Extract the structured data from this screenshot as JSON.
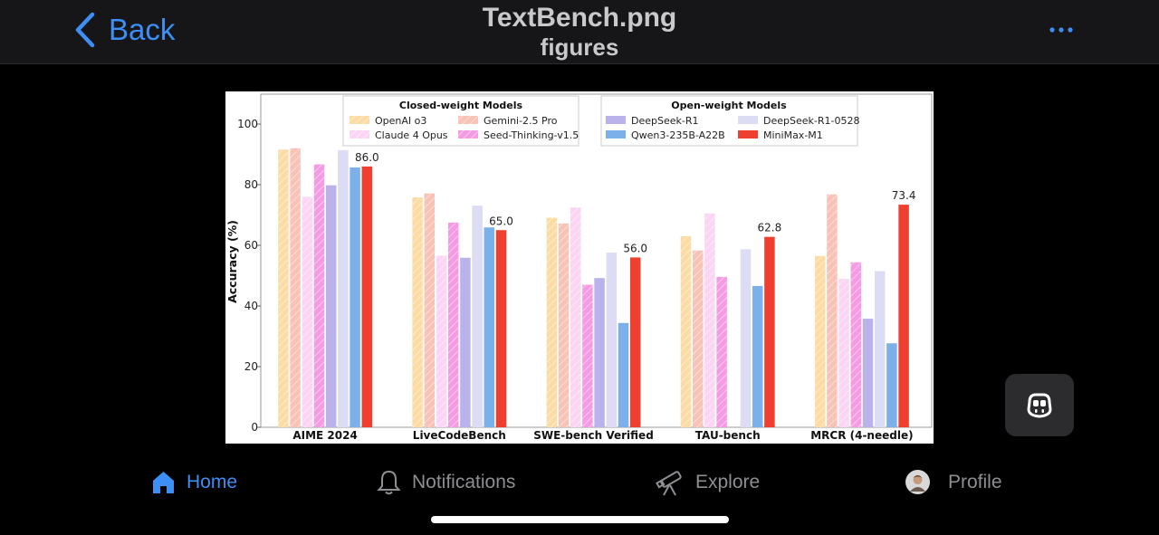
{
  "header": {
    "back_label": "Back",
    "title": "TextBench.png",
    "subtitle": "figures",
    "more_icon": "ellipsis-icon"
  },
  "tabs": [
    {
      "label": "Home",
      "icon": "home-icon",
      "active": true
    },
    {
      "label": "Notifications",
      "icon": "bell-icon",
      "active": false
    },
    {
      "label": "Explore",
      "icon": "telescope-icon",
      "active": false
    },
    {
      "label": "Profile",
      "icon": "avatar",
      "active": false
    }
  ],
  "colors": {
    "accent": "#3d8ff5",
    "inactive": "#8e8e93"
  },
  "chart_data": {
    "type": "bar",
    "ylabel": "Accuracy (%)",
    "ylim": [
      0,
      100
    ],
    "yticks": [
      0,
      20,
      40,
      60,
      80,
      100
    ],
    "categories": [
      "AIME 2024",
      "LiveCodeBench",
      "SWE-bench Verified",
      "TAU-bench",
      "MRCR (4-needle)"
    ],
    "legend_groups": [
      {
        "title": "Closed-weight Models",
        "placement": "top-center-left"
      },
      {
        "title": "Open-weight Models",
        "placement": "top-center-right"
      }
    ],
    "series": [
      {
        "name": "OpenAI o3",
        "group": "closed",
        "color": "#fcdca4",
        "hatch": true,
        "values": [
          91.6,
          75.8,
          69.1,
          63.0,
          56.5
        ]
      },
      {
        "name": "Gemini-2.5 Pro",
        "group": "closed",
        "color": "#f9c2b6",
        "hatch": true,
        "values": [
          92.0,
          77.1,
          67.2,
          58.3,
          76.8
        ]
      },
      {
        "name": "Claude 4 Opus",
        "group": "closed",
        "color": "#fbd5f3",
        "hatch": true,
        "values": [
          76.0,
          56.6,
          72.5,
          70.5,
          48.9
        ]
      },
      {
        "name": "Seed-Thinking-v1.5",
        "group": "closed",
        "color": "#f59be4",
        "hatch": true,
        "values": [
          86.7,
          67.5,
          47.0,
          49.6,
          54.4
        ]
      },
      {
        "name": "DeepSeek-R1",
        "group": "open",
        "color": "#bab3eb",
        "hatch": false,
        "values": [
          79.8,
          55.9,
          49.2,
          0,
          35.8
        ]
      },
      {
        "name": "DeepSeek-R1-0528",
        "group": "open",
        "color": "#dcdcf5",
        "hatch": false,
        "values": [
          91.4,
          73.1,
          57.6,
          58.7,
          51.5
        ]
      },
      {
        "name": "Qwen3-235B-A22B",
        "group": "open",
        "color": "#7cb0ea",
        "hatch": false,
        "values": [
          85.7,
          65.9,
          34.4,
          46.6,
          27.7
        ]
      },
      {
        "name": "MiniMax-M1",
        "group": "open",
        "color": "#ee3f31",
        "hatch": false,
        "values": [
          86.0,
          65.0,
          56.0,
          62.8,
          73.4
        ]
      }
    ],
    "value_labels": {
      "series": "MiniMax-M1",
      "labels": [
        "86.0",
        "65.0",
        "56.0",
        "62.8",
        "73.4"
      ]
    },
    "grid": false,
    "legend_placement": "top"
  }
}
